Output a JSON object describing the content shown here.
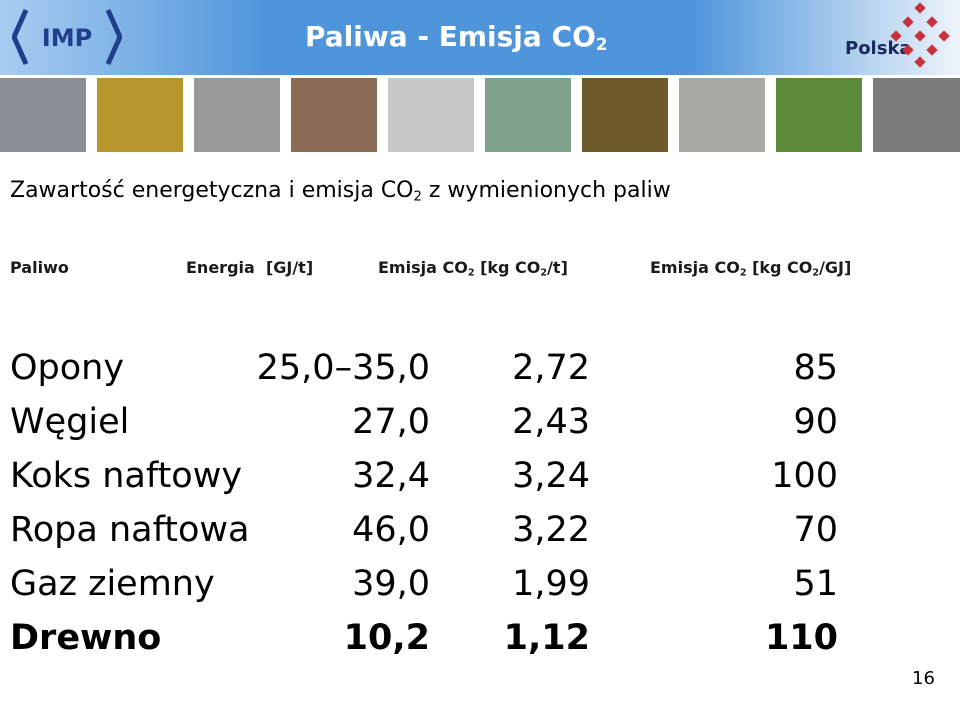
{
  "header": {
    "logo": "IMP",
    "title": [
      "Paliwa - Emisja CO",
      "2"
    ],
    "brand": "Polska"
  },
  "subtitle": [
    "Zawartość energetyczna i emisja CO",
    "2",
    " z wymienionych paliw"
  ],
  "table": {
    "columns": [
      [
        "Paliwo"
      ],
      [
        "Energia  [GJ/t]"
      ],
      [
        "Emisja CO",
        "2",
        " [kg CO",
        "2",
        "/t]"
      ],
      [
        "Emisja CO",
        "2",
        " [kg CO",
        "2",
        "/GJ]"
      ]
    ],
    "rows": [
      [
        "Opony",
        "25,0–35,0",
        "2,72",
        "85"
      ],
      [
        "Węgiel",
        "27,0",
        "2,43",
        "90"
      ],
      [
        "Koks naftowy",
        "32,4",
        "3,24",
        "100"
      ],
      [
        "Ropa naftowa",
        "46,0",
        "3,22",
        "70"
      ],
      [
        "Gaz ziemny",
        "39,0",
        "1,99",
        "51"
      ],
      [
        "Drewno",
        "10,2",
        "1,12",
        "110"
      ]
    ]
  },
  "page_number": "16"
}
